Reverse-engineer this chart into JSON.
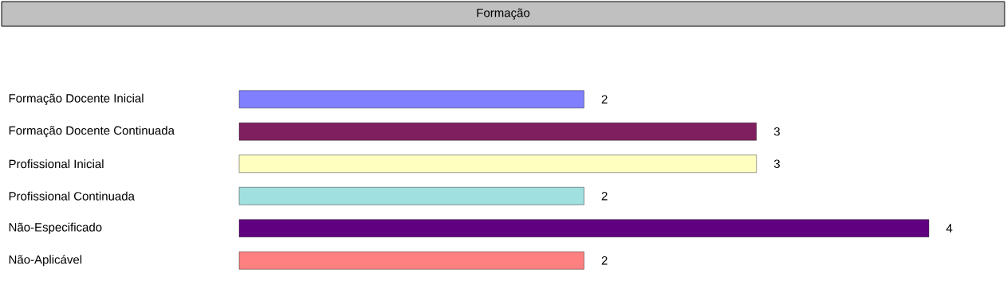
{
  "chart_data": {
    "type": "bar",
    "title": "Formação",
    "orientation": "horizontal",
    "categories": [
      "Formação Docente Inicial",
      "Formação Docente Continuada",
      "Profissional Inicial",
      "Profissional Continuada",
      "Não-Especificado",
      "Não-Aplicável"
    ],
    "values": [
      2,
      3,
      3,
      2,
      4,
      2
    ],
    "colors": [
      "#8080ff",
      "#7f1f5f",
      "#ffffc0",
      "#a0e0e0",
      "#600080",
      "#ff8080"
    ],
    "data_labels": true
  }
}
